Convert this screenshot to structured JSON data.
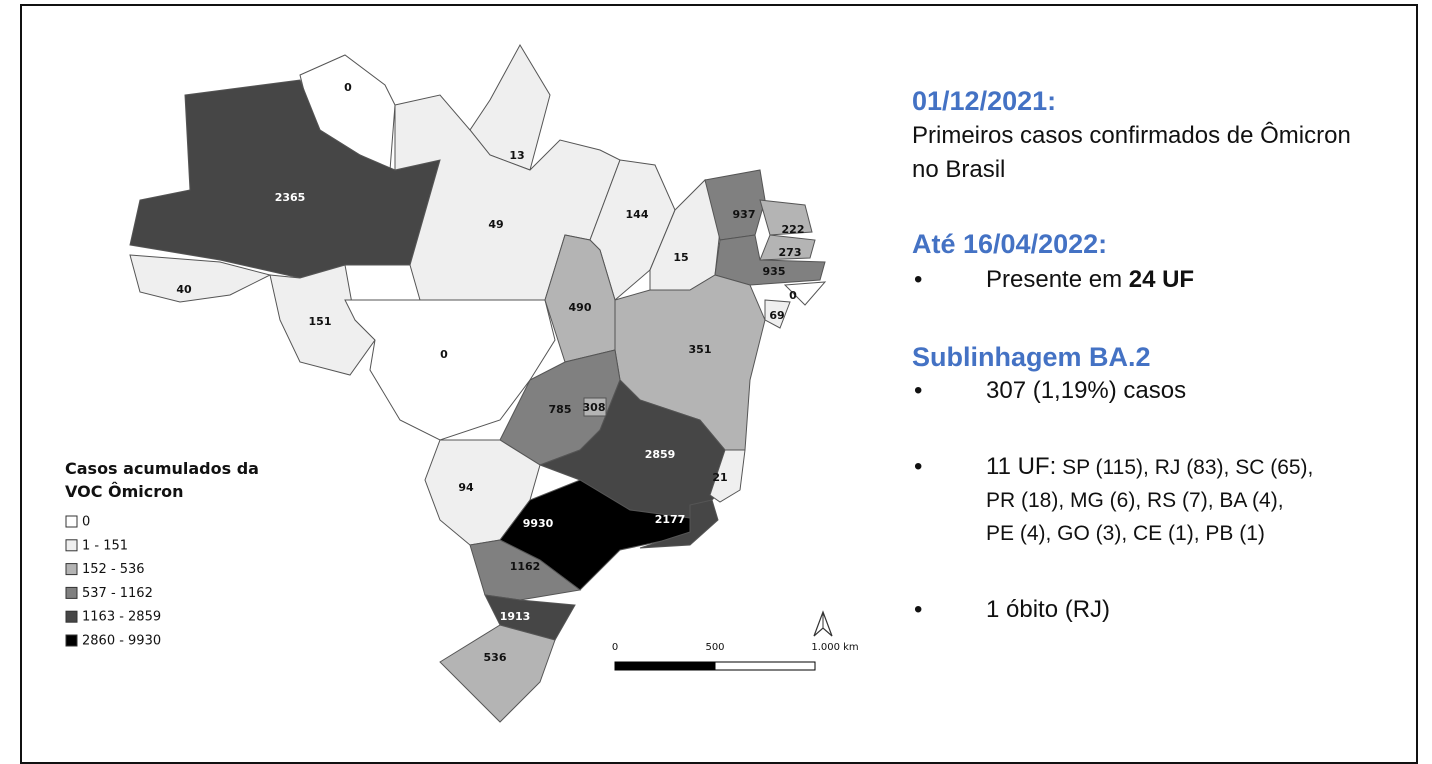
{
  "map": {
    "regions": [
      {
        "value": 0,
        "color": "#ffffff"
      },
      {
        "value": 13,
        "color": "#efefef"
      },
      {
        "value": 2365,
        "color": "#464646"
      },
      {
        "value": 49,
        "color": "#efefef"
      },
      {
        "value": 144,
        "color": "#efefef"
      },
      {
        "value": 15,
        "color": "#efefef"
      },
      {
        "value": 937,
        "color": "#808080"
      },
      {
        "value": 222,
        "color": "#b4b4b4"
      },
      {
        "value": 273,
        "color": "#b4b4b4"
      },
      {
        "value": 935,
        "color": "#808080"
      },
      {
        "value": 0,
        "color": "#ffffff"
      },
      {
        "value": 69,
        "color": "#efefef"
      },
      {
        "value": 40,
        "color": "#efefef"
      },
      {
        "value": 151,
        "color": "#efefef"
      },
      {
        "value": 0,
        "color": "#ffffff"
      },
      {
        "value": 490,
        "color": "#b4b4b4"
      },
      {
        "value": 351,
        "color": "#b4b4b4"
      },
      {
        "value": 785,
        "color": "#808080"
      },
      {
        "value": 308,
        "color": "#b4b4b4"
      },
      {
        "value": 2859,
        "color": "#464646"
      },
      {
        "value": 21,
        "color": "#efefef"
      },
      {
        "value": 94,
        "color": "#efefef"
      },
      {
        "value": 9930,
        "color": "#000000"
      },
      {
        "value": 2177,
        "color": "#464646"
      },
      {
        "value": 1162,
        "color": "#808080"
      },
      {
        "value": 1913,
        "color": "#464646"
      },
      {
        "value": 536,
        "color": "#b4b4b4"
      }
    ],
    "legend": {
      "title_lines": [
        "Casos acumulados da",
        "VOC Ômicron"
      ],
      "items": [
        {
          "label": "0",
          "color": "#ffffff"
        },
        {
          "label": "1 - 151",
          "color": "#efefef"
        },
        {
          "label": "152 - 536",
          "color": "#b4b4b4"
        },
        {
          "label": "537 - 1162",
          "color": "#808080"
        },
        {
          "label": "1163 - 2859",
          "color": "#464646"
        },
        {
          "label": "2860 - 9930",
          "color": "#000000"
        }
      ]
    },
    "scale_labels": [
      "0",
      "500",
      "1.000 km"
    ]
  },
  "panel": {
    "heading1": "01/12/2021:",
    "text1": "Primeiros casos confirmados de Ômicron no Brasil",
    "heading2": "Até 16/04/2022:",
    "bullet1": {
      "text": "Presente em ",
      "bold": "24 UF"
    },
    "heading3": "Sublinhagem BA.2",
    "bullet2": "307 (1,19%) casos",
    "bullet3": {
      "lead": "11 UF:",
      "text": " SP (115), RJ (83), SC (65), PR (18), MG (6), RS (7), BA (4), PE (4), GO (3), CE (1), PB (1)"
    },
    "bullet4": "1 óbito (RJ)"
  }
}
